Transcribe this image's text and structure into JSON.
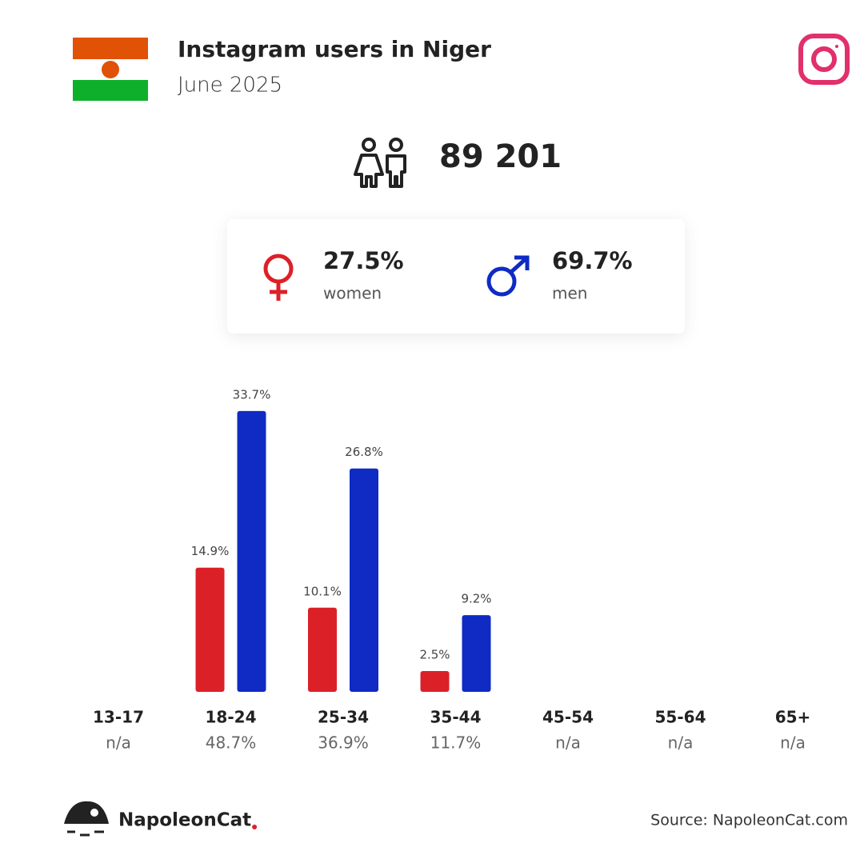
{
  "header": {
    "title": "Instagram users in Niger",
    "subtitle": "June 2025"
  },
  "total": "89 201",
  "gender": {
    "women": {
      "share": "27.5%",
      "label": "women"
    },
    "men": {
      "share": "69.7%",
      "label": "men"
    }
  },
  "chart_data": {
    "type": "bar",
    "categories": [
      "13-17",
      "18-24",
      "25-34",
      "35-44",
      "45-54",
      "55-64",
      "65+"
    ],
    "category_totals": [
      "n/a",
      "48.7%",
      "36.9%",
      "11.7%",
      "n/a",
      "n/a",
      "n/a"
    ],
    "series": [
      {
        "name": "women",
        "color": "#dc2028",
        "values": [
          null,
          14.9,
          10.1,
          2.5,
          null,
          null,
          null
        ],
        "value_labels": [
          null,
          "14.9%",
          "10.1%",
          "2.5%",
          null,
          null,
          null
        ]
      },
      {
        "name": "men",
        "color": "#0f2bc4",
        "values": [
          null,
          33.7,
          26.8,
          9.2,
          null,
          null,
          null
        ],
        "value_labels": [
          null,
          "33.7%",
          "26.8%",
          "9.2%",
          null,
          null,
          null
        ]
      }
    ]
  },
  "footer": {
    "brand": "NapoleonCat",
    "source": "Source: NapoleonCat.com"
  }
}
